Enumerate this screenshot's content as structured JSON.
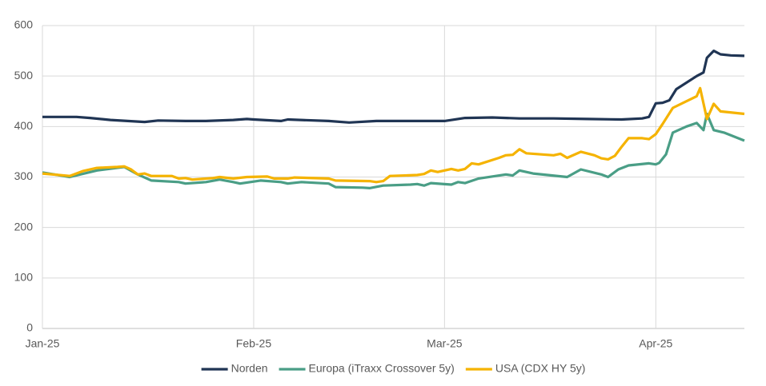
{
  "chart_data": {
    "type": "line",
    "xlim": [
      0,
      103
    ],
    "ylim": [
      0,
      600
    ],
    "xticks": [
      {
        "value": 0,
        "label": "Jan-25"
      },
      {
        "value": 31,
        "label": "Feb-25"
      },
      {
        "value": 59,
        "label": "Mar-25"
      },
      {
        "value": 90,
        "label": "Apr-25"
      }
    ],
    "yticks": [
      0,
      100,
      200,
      300,
      400,
      500,
      600
    ],
    "grid": true,
    "legend": "bottom",
    "series": [
      {
        "name": "Norden",
        "color": "#203554",
        "x": [
          0,
          5,
          7,
          10,
          15,
          17,
          21,
          24,
          28,
          30,
          31,
          35,
          36,
          42,
          45,
          49,
          54,
          59,
          62,
          66,
          70,
          75,
          80,
          85,
          88,
          89,
          90,
          91,
          92,
          93,
          96,
          97,
          97.5,
          98.5,
          99.5,
          101,
          103
        ],
        "values": [
          419,
          419,
          417,
          413,
          409,
          412,
          411,
          411,
          413,
          415,
          414,
          411,
          414,
          411,
          408,
          411,
          411,
          411,
          417,
          418,
          416,
          416,
          415,
          414,
          416,
          419,
          446,
          447,
          452,
          474,
          500,
          507,
          536,
          550,
          543,
          541,
          540
        ]
      },
      {
        "name": "Europa (iTraxx Crossover 5y)",
        "color": "#4a9e86",
        "x": [
          0,
          4,
          8,
          12,
          14,
          16,
          20,
          21,
          24,
          26,
          28,
          29,
          32,
          35,
          36,
          38,
          42,
          43,
          47,
          48,
          50,
          54,
          55,
          56,
          57,
          60,
          61,
          62,
          64,
          68,
          69,
          70,
          72,
          77,
          79,
          82,
          83,
          84.5,
          86,
          89,
          90,
          90.5,
          91.5,
          92.5,
          94.5,
          96,
          97,
          97.5,
          98.5,
          100,
          103
        ],
        "values": [
          309,
          300,
          313,
          320,
          305,
          293,
          290,
          287,
          290,
          295,
          290,
          287,
          293,
          290,
          287,
          290,
          287,
          280,
          279,
          278,
          283,
          285,
          286,
          283,
          288,
          285,
          290,
          288,
          297,
          305,
          303,
          313,
          307,
          300,
          315,
          305,
          300,
          315,
          323,
          327,
          325,
          328,
          345,
          388,
          400,
          407,
          393,
          425,
          393,
          388,
          372
        ]
      },
      {
        "name": "USA (CDX HY 5y)",
        "color": "#f5b300",
        "x": [
          0,
          4,
          6,
          8,
          11,
          12,
          13,
          14,
          15,
          16,
          19,
          20,
          21,
          22,
          25,
          26,
          28,
          30,
          33,
          34,
          36,
          37,
          42,
          43,
          48,
          49,
          50,
          51,
          55,
          56,
          57,
          58,
          60,
          61,
          62,
          63,
          64,
          67,
          68,
          69,
          70,
          71,
          75,
          76,
          77,
          79,
          81,
          82,
          83,
          84,
          85,
          86,
          88,
          89,
          90,
          91,
          92.5,
          96,
          96.5,
          97.5,
          98.5,
          99.5,
          103
        ],
        "values": [
          307,
          302,
          312,
          318,
          320,
          321,
          315,
          305,
          307,
          302,
          302,
          297,
          298,
          295,
          298,
          300,
          297,
          300,
          301,
          297,
          297,
          299,
          297,
          293,
          292,
          290,
          292,
          302,
          304,
          306,
          313,
          310,
          316,
          313,
          316,
          327,
          325,
          338,
          343,
          344,
          355,
          347,
          343,
          346,
          338,
          350,
          343,
          337,
          335,
          342,
          360,
          377,
          377,
          375,
          385,
          405,
          437,
          460,
          476,
          415,
          445,
          430,
          425
        ]
      }
    ]
  }
}
